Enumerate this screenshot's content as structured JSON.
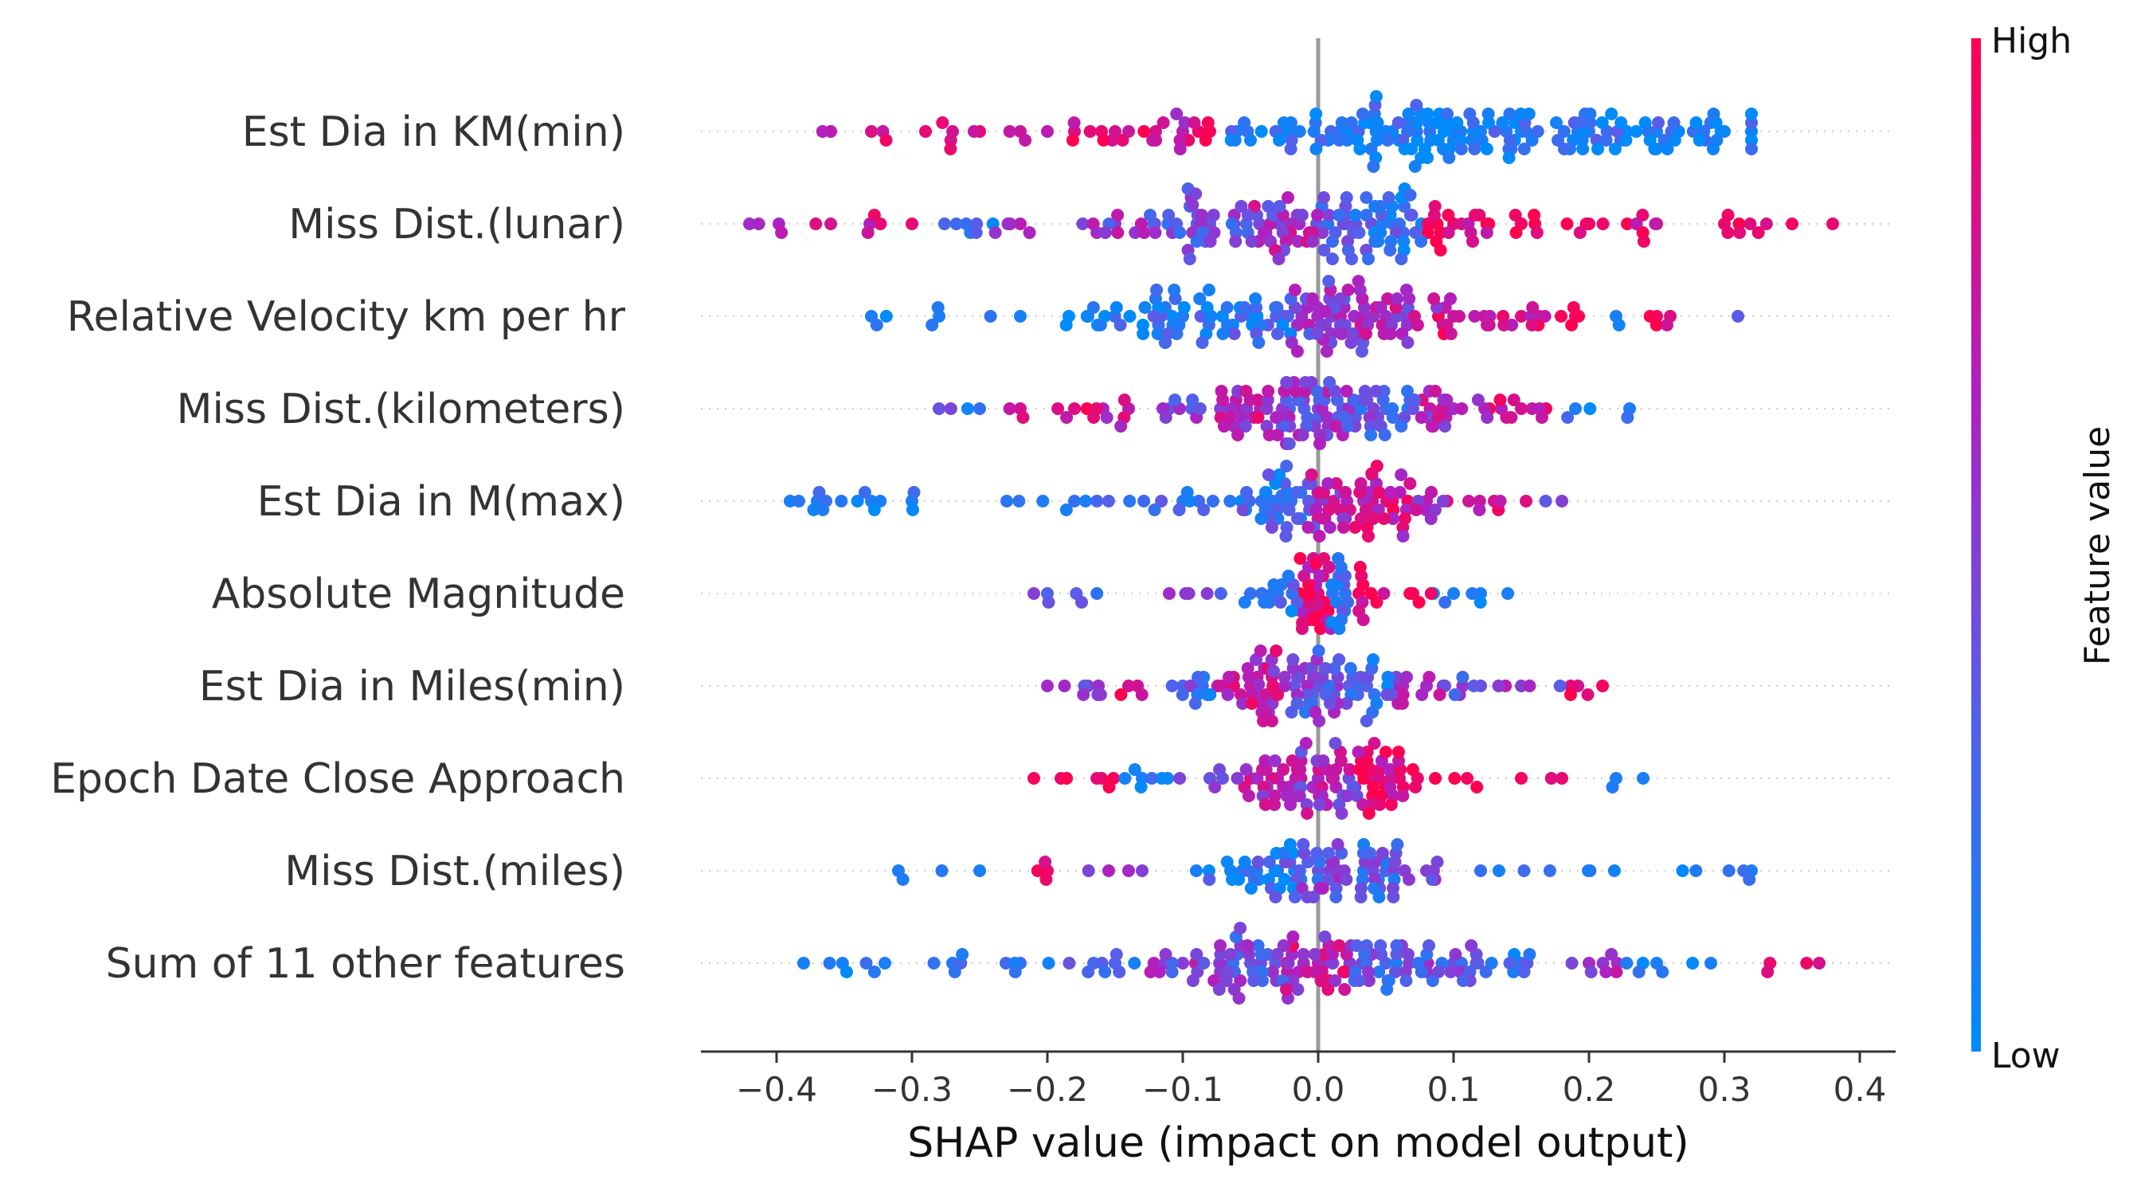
{
  "chart_data": {
    "type": "scatter",
    "subtype": "shap-beeswarm",
    "xlabel": "SHAP value (impact on model output)",
    "xlim": [
      -0.46,
      0.42
    ],
    "xticks": [
      -0.4,
      -0.3,
      -0.2,
      -0.1,
      0.0,
      0.1,
      0.2,
      0.3,
      0.4
    ],
    "xtick_labels": [
      "−0.4",
      "−0.3",
      "−0.2",
      "−0.1",
      "0.0",
      "0.1",
      "0.2",
      "0.3",
      "0.4"
    ],
    "colorbar": {
      "label": "Feature value",
      "high_label": "High",
      "low_label": "Low",
      "low_color": "#008bfb",
      "high_color": "#ff0051"
    },
    "zero_line": true,
    "features": [
      {
        "name": "Est Dia in KM(min)",
        "range": [
          -0.37,
          0.32
        ],
        "center": 0.11,
        "spread": 0.12,
        "density": 1.0,
        "points": [
          {
            "x": -0.36,
            "v": 0.7
          },
          {
            "x": -0.33,
            "v": 0.85
          },
          {
            "x": -0.29,
            "v": 0.9
          },
          {
            "x": -0.27,
            "v": 0.8
          },
          {
            "x": -0.25,
            "v": 0.9
          },
          {
            "x": -0.22,
            "v": 0.75
          },
          {
            "x": -0.2,
            "v": 0.7
          },
          {
            "x": -0.18,
            "v": 0.85
          },
          {
            "x": -0.16,
            "v": 0.9
          },
          {
            "x": -0.15,
            "v": 0.8
          },
          {
            "x": -0.14,
            "v": 0.75
          },
          {
            "x": -0.12,
            "v": 0.8
          },
          {
            "x": -0.1,
            "v": 0.7
          },
          {
            "x": -0.08,
            "v": 0.85
          },
          {
            "x": -0.06,
            "v": 0.1
          },
          {
            "x": -0.02,
            "v": 0.1
          },
          {
            "x": 0.05,
            "v": 0.1
          },
          {
            "x": 0.1,
            "v": 0.05
          },
          {
            "x": 0.12,
            "v": 0.1
          },
          {
            "x": 0.15,
            "v": 0.1
          },
          {
            "x": 0.2,
            "v": 0.15
          },
          {
            "x": 0.25,
            "v": 0.1
          },
          {
            "x": 0.3,
            "v": 0.1
          },
          {
            "x": 0.32,
            "v": 0.05
          }
        ]
      },
      {
        "name": "Miss Dist.(lunar)",
        "range": [
          -0.42,
          0.38
        ],
        "center": -0.01,
        "spread": 0.09,
        "density": 1.0,
        "points": [
          {
            "x": -0.42,
            "v": 0.6
          },
          {
            "x": -0.36,
            "v": 0.8
          },
          {
            "x": -0.3,
            "v": 0.9
          },
          {
            "x": -0.26,
            "v": 0.2
          },
          {
            "x": -0.22,
            "v": 0.7
          },
          {
            "x": -0.15,
            "v": 0.5
          },
          {
            "x": -0.08,
            "v": 0.4
          },
          {
            "x": -0.02,
            "v": 0.6
          },
          {
            "x": 0.02,
            "v": 0.3
          },
          {
            "x": 0.06,
            "v": 0.2
          },
          {
            "x": 0.1,
            "v": 0.9
          },
          {
            "x": 0.15,
            "v": 0.95
          },
          {
            "x": 0.2,
            "v": 0.95
          },
          {
            "x": 0.25,
            "v": 0.9
          },
          {
            "x": 0.3,
            "v": 0.9
          },
          {
            "x": 0.35,
            "v": 0.95
          },
          {
            "x": 0.38,
            "v": 0.9
          }
        ]
      },
      {
        "name": "Relative Velocity km per hr",
        "range": [
          -0.33,
          0.31
        ],
        "center": 0.0,
        "spread": 0.07,
        "density": 0.9,
        "points": [
          {
            "x": -0.33,
            "v": 0.1
          },
          {
            "x": -0.28,
            "v": 0.1
          },
          {
            "x": -0.22,
            "v": 0.1
          },
          {
            "x": -0.17,
            "v": 0.1
          },
          {
            "x": -0.1,
            "v": 0.15
          },
          {
            "x": -0.05,
            "v": 0.15
          },
          {
            "x": 0.01,
            "v": 0.5
          },
          {
            "x": 0.05,
            "v": 0.6
          },
          {
            "x": 0.1,
            "v": 0.75
          },
          {
            "x": 0.15,
            "v": 0.85
          },
          {
            "x": 0.19,
            "v": 0.9
          },
          {
            "x": 0.22,
            "v": 0.1
          },
          {
            "x": 0.25,
            "v": 0.95
          },
          {
            "x": 0.26,
            "v": 0.85
          },
          {
            "x": 0.31,
            "v": 0.35
          }
        ]
      },
      {
        "name": "Miss Dist.(kilometers)",
        "range": [
          -0.28,
          0.23
        ],
        "center": 0.0,
        "spread": 0.06,
        "density": 0.8,
        "points": [
          {
            "x": -0.28,
            "v": 0.4
          },
          {
            "x": -0.25,
            "v": 0.2
          },
          {
            "x": -0.22,
            "v": 0.8
          },
          {
            "x": -0.18,
            "v": 0.85
          },
          {
            "x": -0.14,
            "v": 0.7
          },
          {
            "x": -0.11,
            "v": 0.4
          },
          {
            "x": -0.06,
            "v": 0.7
          },
          {
            "x": 0.0,
            "v": 0.5
          },
          {
            "x": 0.05,
            "v": 0.3
          },
          {
            "x": 0.1,
            "v": 0.6
          },
          {
            "x": 0.15,
            "v": 0.8
          },
          {
            "x": 0.19,
            "v": 0.1
          },
          {
            "x": 0.23,
            "v": 0.1
          }
        ]
      },
      {
        "name": "Est Dia in M(max)",
        "range": [
          -0.39,
          0.18
        ],
        "center": 0.0,
        "spread": 0.05,
        "density": 0.7,
        "points": [
          {
            "x": -0.39,
            "v": 0.1
          },
          {
            "x": -0.37,
            "v": 0.1
          },
          {
            "x": -0.33,
            "v": 0.1
          },
          {
            "x": -0.3,
            "v": 0.1
          },
          {
            "x": -0.23,
            "v": 0.15
          },
          {
            "x": -0.18,
            "v": 0.2
          },
          {
            "x": -0.1,
            "v": 0.15
          },
          {
            "x": -0.02,
            "v": 0.2
          },
          {
            "x": 0.0,
            "v": 0.6
          },
          {
            "x": 0.04,
            "v": 0.8
          },
          {
            "x": 0.08,
            "v": 0.7
          },
          {
            "x": 0.13,
            "v": 0.8
          },
          {
            "x": 0.18,
            "v": 0.5
          }
        ]
      },
      {
        "name": "Absolute Magnitude",
        "range": [
          -0.21,
          0.14
        ],
        "center": 0.0,
        "spread": 0.02,
        "density": 0.45,
        "points": [
          {
            "x": -0.21,
            "v": 0.5
          },
          {
            "x": -0.2,
            "v": 0.3
          },
          {
            "x": -0.11,
            "v": 0.6
          },
          {
            "x": -0.05,
            "v": 0.2
          },
          {
            "x": -0.03,
            "v": 0.15
          },
          {
            "x": 0.0,
            "v": 0.85
          },
          {
            "x": 0.02,
            "v": 0.15
          },
          {
            "x": 0.03,
            "v": 0.95
          },
          {
            "x": 0.07,
            "v": 0.95
          },
          {
            "x": 0.1,
            "v": 0.1
          },
          {
            "x": 0.12,
            "v": 0.1
          },
          {
            "x": 0.14,
            "v": 0.1
          }
        ]
      },
      {
        "name": "Est Dia in Miles(min)",
        "range": [
          -0.2,
          0.21
        ],
        "center": 0.0,
        "spread": 0.05,
        "density": 0.7,
        "points": [
          {
            "x": -0.2,
            "v": 0.6
          },
          {
            "x": -0.17,
            "v": 0.5
          },
          {
            "x": -0.14,
            "v": 0.8
          },
          {
            "x": -0.1,
            "v": 0.3
          },
          {
            "x": -0.05,
            "v": 0.7
          },
          {
            "x": 0.0,
            "v": 0.4
          },
          {
            "x": 0.03,
            "v": 0.2
          },
          {
            "x": 0.08,
            "v": 0.6
          },
          {
            "x": 0.12,
            "v": 0.4
          },
          {
            "x": 0.15,
            "v": 0.5
          },
          {
            "x": 0.21,
            "v": 0.95
          }
        ]
      },
      {
        "name": "Epoch Date Close Approach",
        "range": [
          -0.21,
          0.24
        ],
        "center": 0.0,
        "spread": 0.04,
        "density": 0.6,
        "points": [
          {
            "x": -0.21,
            "v": 0.95
          },
          {
            "x": -0.19,
            "v": 0.9
          },
          {
            "x": -0.16,
            "v": 0.95
          },
          {
            "x": -0.13,
            "v": 0.1
          },
          {
            "x": -0.08,
            "v": 0.4
          },
          {
            "x": -0.03,
            "v": 0.7
          },
          {
            "x": 0.0,
            "v": 0.6
          },
          {
            "x": 0.06,
            "v": 0.9
          },
          {
            "x": 0.11,
            "v": 0.95
          },
          {
            "x": 0.15,
            "v": 0.95
          },
          {
            "x": 0.18,
            "v": 0.9
          },
          {
            "x": 0.22,
            "v": 0.1
          },
          {
            "x": 0.24,
            "v": 0.1
          }
        ]
      },
      {
        "name": "Miss Dist.(miles)",
        "range": [
          -0.31,
          0.32
        ],
        "center": 0.0,
        "spread": 0.04,
        "density": 0.55,
        "points": [
          {
            "x": -0.31,
            "v": 0.1
          },
          {
            "x": -0.25,
            "v": 0.1
          },
          {
            "x": -0.2,
            "v": 0.95
          },
          {
            "x": -0.14,
            "v": 0.6
          },
          {
            "x": -0.13,
            "v": 0.5
          },
          {
            "x": -0.09,
            "v": 0.1
          },
          {
            "x": -0.03,
            "v": 0.2
          },
          {
            "x": 0.0,
            "v": 0.4
          },
          {
            "x": 0.05,
            "v": 0.3
          },
          {
            "x": 0.08,
            "v": 0.5
          },
          {
            "x": 0.12,
            "v": 0.2
          },
          {
            "x": 0.32,
            "v": 0.1
          }
        ]
      },
      {
        "name": "Sum of 11 other features",
        "range": [
          -0.38,
          0.37
        ],
        "center": 0.0,
        "spread": 0.07,
        "density": 0.9,
        "points": [
          {
            "x": -0.38,
            "v": 0.1
          },
          {
            "x": -0.32,
            "v": 0.1
          },
          {
            "x": -0.27,
            "v": 0.15
          },
          {
            "x": -0.22,
            "v": 0.2
          },
          {
            "x": -0.15,
            "v": 0.3
          },
          {
            "x": -0.1,
            "v": 0.5
          },
          {
            "x": -0.05,
            "v": 0.4
          },
          {
            "x": 0.0,
            "v": 0.7
          },
          {
            "x": 0.05,
            "v": 0.3
          },
          {
            "x": 0.1,
            "v": 0.4
          },
          {
            "x": 0.15,
            "v": 0.2
          },
          {
            "x": 0.2,
            "v": 0.6
          },
          {
            "x": 0.25,
            "v": 0.1
          },
          {
            "x": 0.29,
            "v": 0.1
          },
          {
            "x": 0.37,
            "v": 0.8
          }
        ]
      }
    ]
  }
}
